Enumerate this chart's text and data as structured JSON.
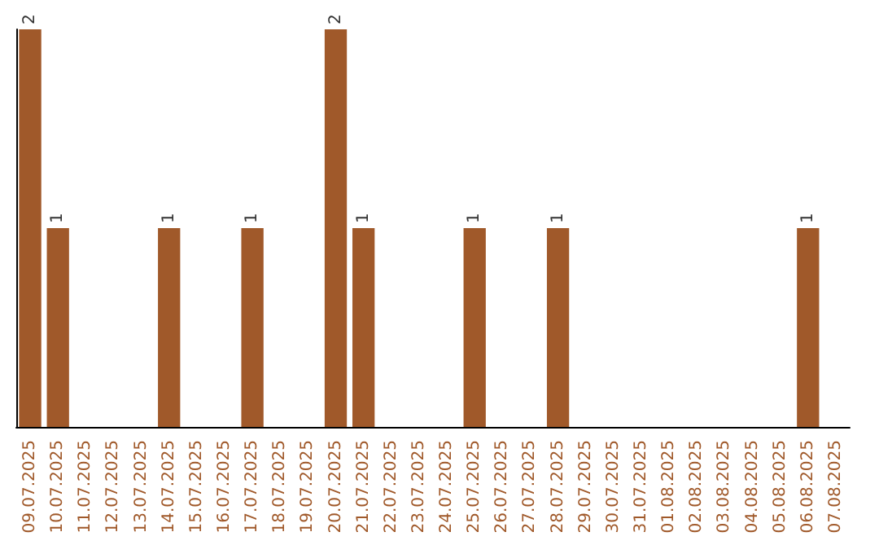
{
  "chart_data": {
    "type": "bar",
    "categories": [
      "09.07.2025",
      "10.07.2025",
      "11.07.2025",
      "12.07.2025",
      "13.07.2025",
      "14.07.2025",
      "15.07.2025",
      "16.07.2025",
      "17.07.2025",
      "18.07.2025",
      "19.07.2025",
      "20.07.2025",
      "21.07.2025",
      "22.07.2025",
      "23.07.2025",
      "24.07.2025",
      "25.07.2025",
      "26.07.2025",
      "27.07.2025",
      "28.07.2025",
      "29.07.2025",
      "30.07.2025",
      "31.07.2025",
      "01.08.2025",
      "02.08.2025",
      "03.08.2025",
      "04.08.2025",
      "05.08.2025",
      "06.08.2025",
      "07.08.2025"
    ],
    "values": [
      2,
      1,
      0,
      0,
      0,
      1,
      0,
      0,
      1,
      0,
      0,
      2,
      1,
      0,
      0,
      0,
      1,
      0,
      0,
      1,
      0,
      0,
      0,
      0,
      0,
      0,
      0,
      0,
      1,
      0
    ],
    "value_labels": [
      "2",
      "1",
      null,
      null,
      null,
      "1",
      null,
      null,
      "1",
      null,
      null,
      "2",
      "1",
      null,
      null,
      null,
      "1",
      null,
      null,
      "1",
      null,
      null,
      null,
      null,
      null,
      null,
      null,
      null,
      "1",
      null
    ],
    "color": "#a0592a",
    "grid": false
  }
}
